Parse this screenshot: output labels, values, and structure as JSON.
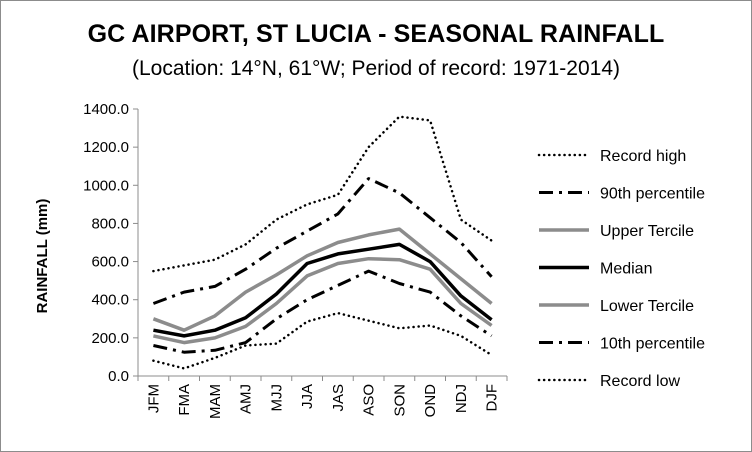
{
  "chart_data": {
    "type": "line",
    "title": "GC AIRPORT, ST LUCIA - SEASONAL RAINFALL",
    "subtitle": "(Location: 14°N, 61°W; Period of record: 1971-2014)",
    "ylabel": "RAINFALL (mm)",
    "xlabel": "",
    "ylim": [
      0,
      1400
    ],
    "y_ticks": [
      "0.0",
      "200.0",
      "400.0",
      "600.0",
      "800.0",
      "1000.0",
      "1200.0",
      "1400.0"
    ],
    "categories": [
      "JFM",
      "FMA",
      "MAM",
      "AMJ",
      "MJJ",
      "JJA",
      "JAS",
      "ASO",
      "SON",
      "OND",
      "NDJ",
      "DJF"
    ],
    "grid": false,
    "legend_position": "right",
    "series": [
      {
        "name": "Record high",
        "color": "#000000",
        "style": "dotted",
        "values": [
          550,
          580,
          610,
          690,
          820,
          900,
          950,
          1200,
          1360,
          1340,
          820,
          710
        ]
      },
      {
        "name": "90th percentile",
        "color": "#000000",
        "style": "dashdot",
        "values": [
          380,
          440,
          470,
          560,
          670,
          760,
          850,
          1035,
          960,
          830,
          700,
          520
        ]
      },
      {
        "name": "Upper Tercile",
        "color": "#8c8c8c",
        "style": "solid",
        "values": [
          300,
          240,
          315,
          440,
          530,
          630,
          700,
          740,
          770,
          640,
          510,
          380
        ]
      },
      {
        "name": "Median",
        "color": "#000000",
        "style": "solid",
        "values": [
          240,
          210,
          240,
          305,
          430,
          590,
          640,
          665,
          690,
          600,
          420,
          295
        ]
      },
      {
        "name": "Lower Tercile",
        "color": "#8c8c8c",
        "style": "solid",
        "values": [
          210,
          175,
          200,
          260,
          380,
          525,
          590,
          615,
          610,
          560,
          380,
          265
        ]
      },
      {
        "name": "10th percentile",
        "color": "#000000",
        "style": "dashdot",
        "values": [
          160,
          125,
          135,
          175,
          300,
          400,
          475,
          550,
          485,
          440,
          315,
          210
        ]
      },
      {
        "name": "Record low",
        "color": "#000000",
        "style": "dotted",
        "values": [
          80,
          40,
          95,
          160,
          170,
          285,
          330,
          290,
          250,
          265,
          210,
          110
        ]
      }
    ]
  }
}
